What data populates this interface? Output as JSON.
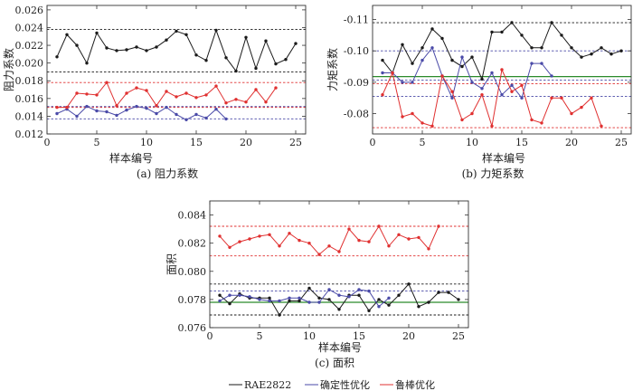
{
  "colors": {
    "black": "#1a1a1a",
    "blue": "#4a4aa8",
    "red": "#e03030",
    "green": "#2a8a2a"
  },
  "legend": [
    {
      "label": "RAE2822",
      "color": "#1a1a1a"
    },
    {
      "label": "确定性优化",
      "color": "#4a4aa8"
    },
    {
      "label": "鲁棒优化",
      "color": "#e03030"
    }
  ],
  "chart_data": [
    {
      "type": "line",
      "caption": "(a) 阻力系数",
      "xlabel": "样本编号",
      "ylabel": "阻力系数",
      "xlim": [
        0,
        26
      ],
      "ylim": [
        0.012,
        0.0265
      ],
      "yreverse": false,
      "xticks": [
        0,
        5,
        10,
        15,
        20,
        25
      ],
      "yticks": [
        0.012,
        0.014,
        0.016,
        0.018,
        0.02,
        0.022,
        0.024,
        0.026
      ],
      "ytick_labels": [
        "0.012",
        "0.014",
        "0.016",
        "0.018",
        "0.020",
        "0.022",
        "0.024",
        "0.026"
      ],
      "series": [
        {
          "name": "RAE2822",
          "color": "#1a1a1a",
          "x": [
            1,
            2,
            3,
            4,
            5,
            6,
            7,
            8,
            9,
            10,
            11,
            12,
            13,
            14,
            15,
            16,
            17,
            18,
            19,
            20,
            21,
            22,
            23,
            24,
            25
          ],
          "y": [
            0.0207,
            0.0232,
            0.022,
            0.02,
            0.0234,
            0.0217,
            0.0214,
            0.0215,
            0.0218,
            0.0214,
            0.0218,
            0.0226,
            0.0236,
            0.0232,
            0.0209,
            0.0203,
            0.0237,
            0.0206,
            0.0191,
            0.0229,
            0.0194,
            0.0225,
            0.0199,
            0.0204,
            0.0222
          ]
        },
        {
          "name": "确定性优化",
          "color": "#4a4aa8",
          "x": [
            1,
            2,
            3,
            4,
            5,
            6,
            7,
            8,
            9,
            10,
            11,
            12,
            13,
            14,
            15,
            16,
            17,
            18
          ],
          "y": [
            0.0143,
            0.0148,
            0.014,
            0.0151,
            0.0146,
            0.0145,
            0.0141,
            0.0147,
            0.0151,
            0.0149,
            0.0143,
            0.015,
            0.0142,
            0.0136,
            0.0142,
            0.0138,
            0.0148,
            0.0137
          ]
        },
        {
          "name": "鲁棒优化",
          "color": "#e03030",
          "x": [
            1,
            2,
            3,
            4,
            5,
            6,
            7,
            8,
            9,
            10,
            11,
            12,
            13,
            14,
            15,
            16,
            17,
            18,
            19,
            20,
            21,
            22,
            23
          ],
          "y": [
            0.015,
            0.015,
            0.0166,
            0.0165,
            0.0164,
            0.0178,
            0.0152,
            0.0166,
            0.0172,
            0.0169,
            0.0152,
            0.0168,
            0.0162,
            0.0166,
            0.0161,
            0.0164,
            0.0174,
            0.0155,
            0.0159,
            0.0156,
            0.017,
            0.0156,
            0.0172
          ]
        }
      ],
      "ref_lines": [
        {
          "y": 0.0238,
          "color": "#1a1a1a",
          "style": "dashed"
        },
        {
          "y": 0.019,
          "color": "#1a1a1a",
          "style": "dashed"
        },
        {
          "y": 0.0178,
          "color": "#e03030",
          "style": "dashed"
        },
        {
          "y": 0.015,
          "color": "#e03030",
          "style": "dashed"
        },
        {
          "y": 0.0151,
          "color": "#4a4aa8",
          "style": "dashed"
        },
        {
          "y": 0.0137,
          "color": "#4a4aa8",
          "style": "dashed"
        }
      ]
    },
    {
      "type": "line",
      "caption": "(b) 力矩系数",
      "xlabel": "样本编号",
      "ylabel": "力矩系数",
      "xlim": [
        0,
        26
      ],
      "ylim": [
        -0.1145,
        -0.0735
      ],
      "yreverse": true,
      "xticks": [
        0,
        5,
        10,
        15,
        20,
        25
      ],
      "yticks": [
        -0.11,
        -0.1,
        -0.09,
        -0.08
      ],
      "ytick_labels": [
        "-0.11",
        "-0.10",
        "-0.09",
        "-0.08"
      ],
      "series": [
        {
          "name": "RAE2822",
          "color": "#1a1a1a",
          "x": [
            1,
            2,
            3,
            4,
            5,
            6,
            7,
            8,
            9,
            10,
            11,
            12,
            13,
            14,
            15,
            16,
            17,
            18,
            19,
            20,
            21,
            22,
            23,
            24,
            25
          ],
          "y": [
            -0.097,
            -0.093,
            -0.102,
            -0.096,
            -0.101,
            -0.107,
            -0.104,
            -0.097,
            -0.095,
            -0.098,
            -0.091,
            -0.106,
            -0.106,
            -0.109,
            -0.105,
            -0.101,
            -0.101,
            -0.109,
            -0.105,
            -0.101,
            -0.098,
            -0.099,
            -0.101,
            -0.099,
            -0.1
          ]
        },
        {
          "name": "确定性优化",
          "color": "#4a4aa8",
          "x": [
            1,
            2,
            3,
            4,
            5,
            6,
            7,
            8,
            9,
            10,
            11,
            12,
            13,
            14,
            15,
            16,
            17,
            18
          ],
          "y": [
            -0.093,
            -0.093,
            -0.09,
            -0.09,
            -0.097,
            -0.101,
            -0.092,
            -0.085,
            -0.098,
            -0.09,
            -0.088,
            -0.093,
            -0.086,
            -0.089,
            -0.085,
            -0.096,
            -0.096,
            -0.092
          ]
        },
        {
          "name": "鲁棒优化",
          "color": "#e03030",
          "x": [
            1,
            2,
            3,
            4,
            5,
            6,
            7,
            8,
            9,
            10,
            11,
            12,
            13,
            14,
            15,
            16,
            17,
            18,
            19,
            20,
            21,
            22,
            23
          ],
          "y": [
            -0.086,
            -0.093,
            -0.079,
            -0.08,
            -0.077,
            -0.076,
            -0.092,
            -0.087,
            -0.078,
            -0.08,
            -0.086,
            -0.076,
            -0.094,
            -0.087,
            -0.089,
            -0.078,
            -0.077,
            -0.085,
            -0.085,
            -0.08,
            -0.082,
            -0.085,
            -0.076
          ]
        }
      ],
      "ref_lines": [
        {
          "y": -0.109,
          "color": "#1a1a1a",
          "style": "dashed"
        },
        {
          "y": -0.0918,
          "color": "#2a8a2a",
          "style": "solid"
        },
        {
          "y": -0.1,
          "color": "#4a4aa8",
          "style": "dashed"
        },
        {
          "y": -0.0907,
          "color": "#4a4aa8",
          "style": "dashed"
        },
        {
          "y": -0.0855,
          "color": "#4a4aa8",
          "style": "dashed"
        },
        {
          "y": -0.0895,
          "color": "#e03030",
          "style": "dashed"
        },
        {
          "y": -0.0755,
          "color": "#e03030",
          "style": "dashed"
        }
      ]
    },
    {
      "type": "line",
      "caption": "(c) 面积",
      "xlabel": "样本编号",
      "ylabel": "面积",
      "xlim": [
        0,
        26
      ],
      "ylim": [
        0.076,
        0.085
      ],
      "yreverse": false,
      "xticks": [
        0,
        5,
        10,
        15,
        20,
        25
      ],
      "yticks": [
        0.076,
        0.078,
        0.08,
        0.082,
        0.084
      ],
      "ytick_labels": [
        "0.076",
        "0.078",
        "0.080",
        "0.082",
        "0.084"
      ],
      "series": [
        {
          "name": "RAE2822",
          "color": "#1a1a1a",
          "x": [
            1,
            2,
            3,
            4,
            5,
            6,
            7,
            8,
            9,
            10,
            11,
            12,
            13,
            14,
            15,
            16,
            17,
            18,
            19,
            20,
            21,
            22,
            23,
            24,
            25
          ],
          "y": [
            0.0783,
            0.0777,
            0.0784,
            0.0781,
            0.0781,
            0.0781,
            0.0769,
            0.0779,
            0.0779,
            0.0788,
            0.0781,
            0.078,
            0.0773,
            0.0783,
            0.0783,
            0.0772,
            0.078,
            0.0776,
            0.0783,
            0.0791,
            0.0775,
            0.0778,
            0.0785,
            0.0785,
            0.078
          ]
        },
        {
          "name": "确定性优化",
          "color": "#4a4aa8",
          "x": [
            1,
            2,
            3,
            4,
            5,
            6,
            7,
            8,
            9,
            10,
            11,
            12,
            13,
            14,
            15,
            16,
            17,
            18
          ],
          "y": [
            0.0779,
            0.0783,
            0.0783,
            0.0782,
            0.078,
            0.0779,
            0.0779,
            0.0781,
            0.0781,
            0.0778,
            0.0778,
            0.0787,
            0.0783,
            0.0782,
            0.0787,
            0.0786,
            0.0775,
            0.0781
          ]
        },
        {
          "name": "鲁棒优化",
          "color": "#e03030",
          "x": [
            1,
            2,
            3,
            4,
            5,
            6,
            7,
            8,
            9,
            10,
            11,
            12,
            13,
            14,
            15,
            16,
            17,
            18,
            19,
            20,
            21,
            22,
            23
          ],
          "y": [
            0.0825,
            0.0817,
            0.0821,
            0.0823,
            0.0825,
            0.0826,
            0.0818,
            0.0827,
            0.0822,
            0.082,
            0.0812,
            0.0818,
            0.0814,
            0.083,
            0.0822,
            0.0821,
            0.0832,
            0.0818,
            0.0826,
            0.0823,
            0.0824,
            0.0816,
            0.0832
          ]
        }
      ],
      "ref_lines": [
        {
          "y": 0.0832,
          "color": "#e03030",
          "style": "dashed"
        },
        {
          "y": 0.0811,
          "color": "#e03030",
          "style": "dashed"
        },
        {
          "y": 0.0791,
          "color": "#1a1a1a",
          "style": "dashed"
        },
        {
          "y": 0.0769,
          "color": "#1a1a1a",
          "style": "dashed"
        },
        {
          "y": 0.0786,
          "color": "#4a4aa8",
          "style": "dashed"
        },
        {
          "y": 0.0778,
          "color": "#2a8a2a",
          "style": "solid"
        }
      ]
    }
  ]
}
